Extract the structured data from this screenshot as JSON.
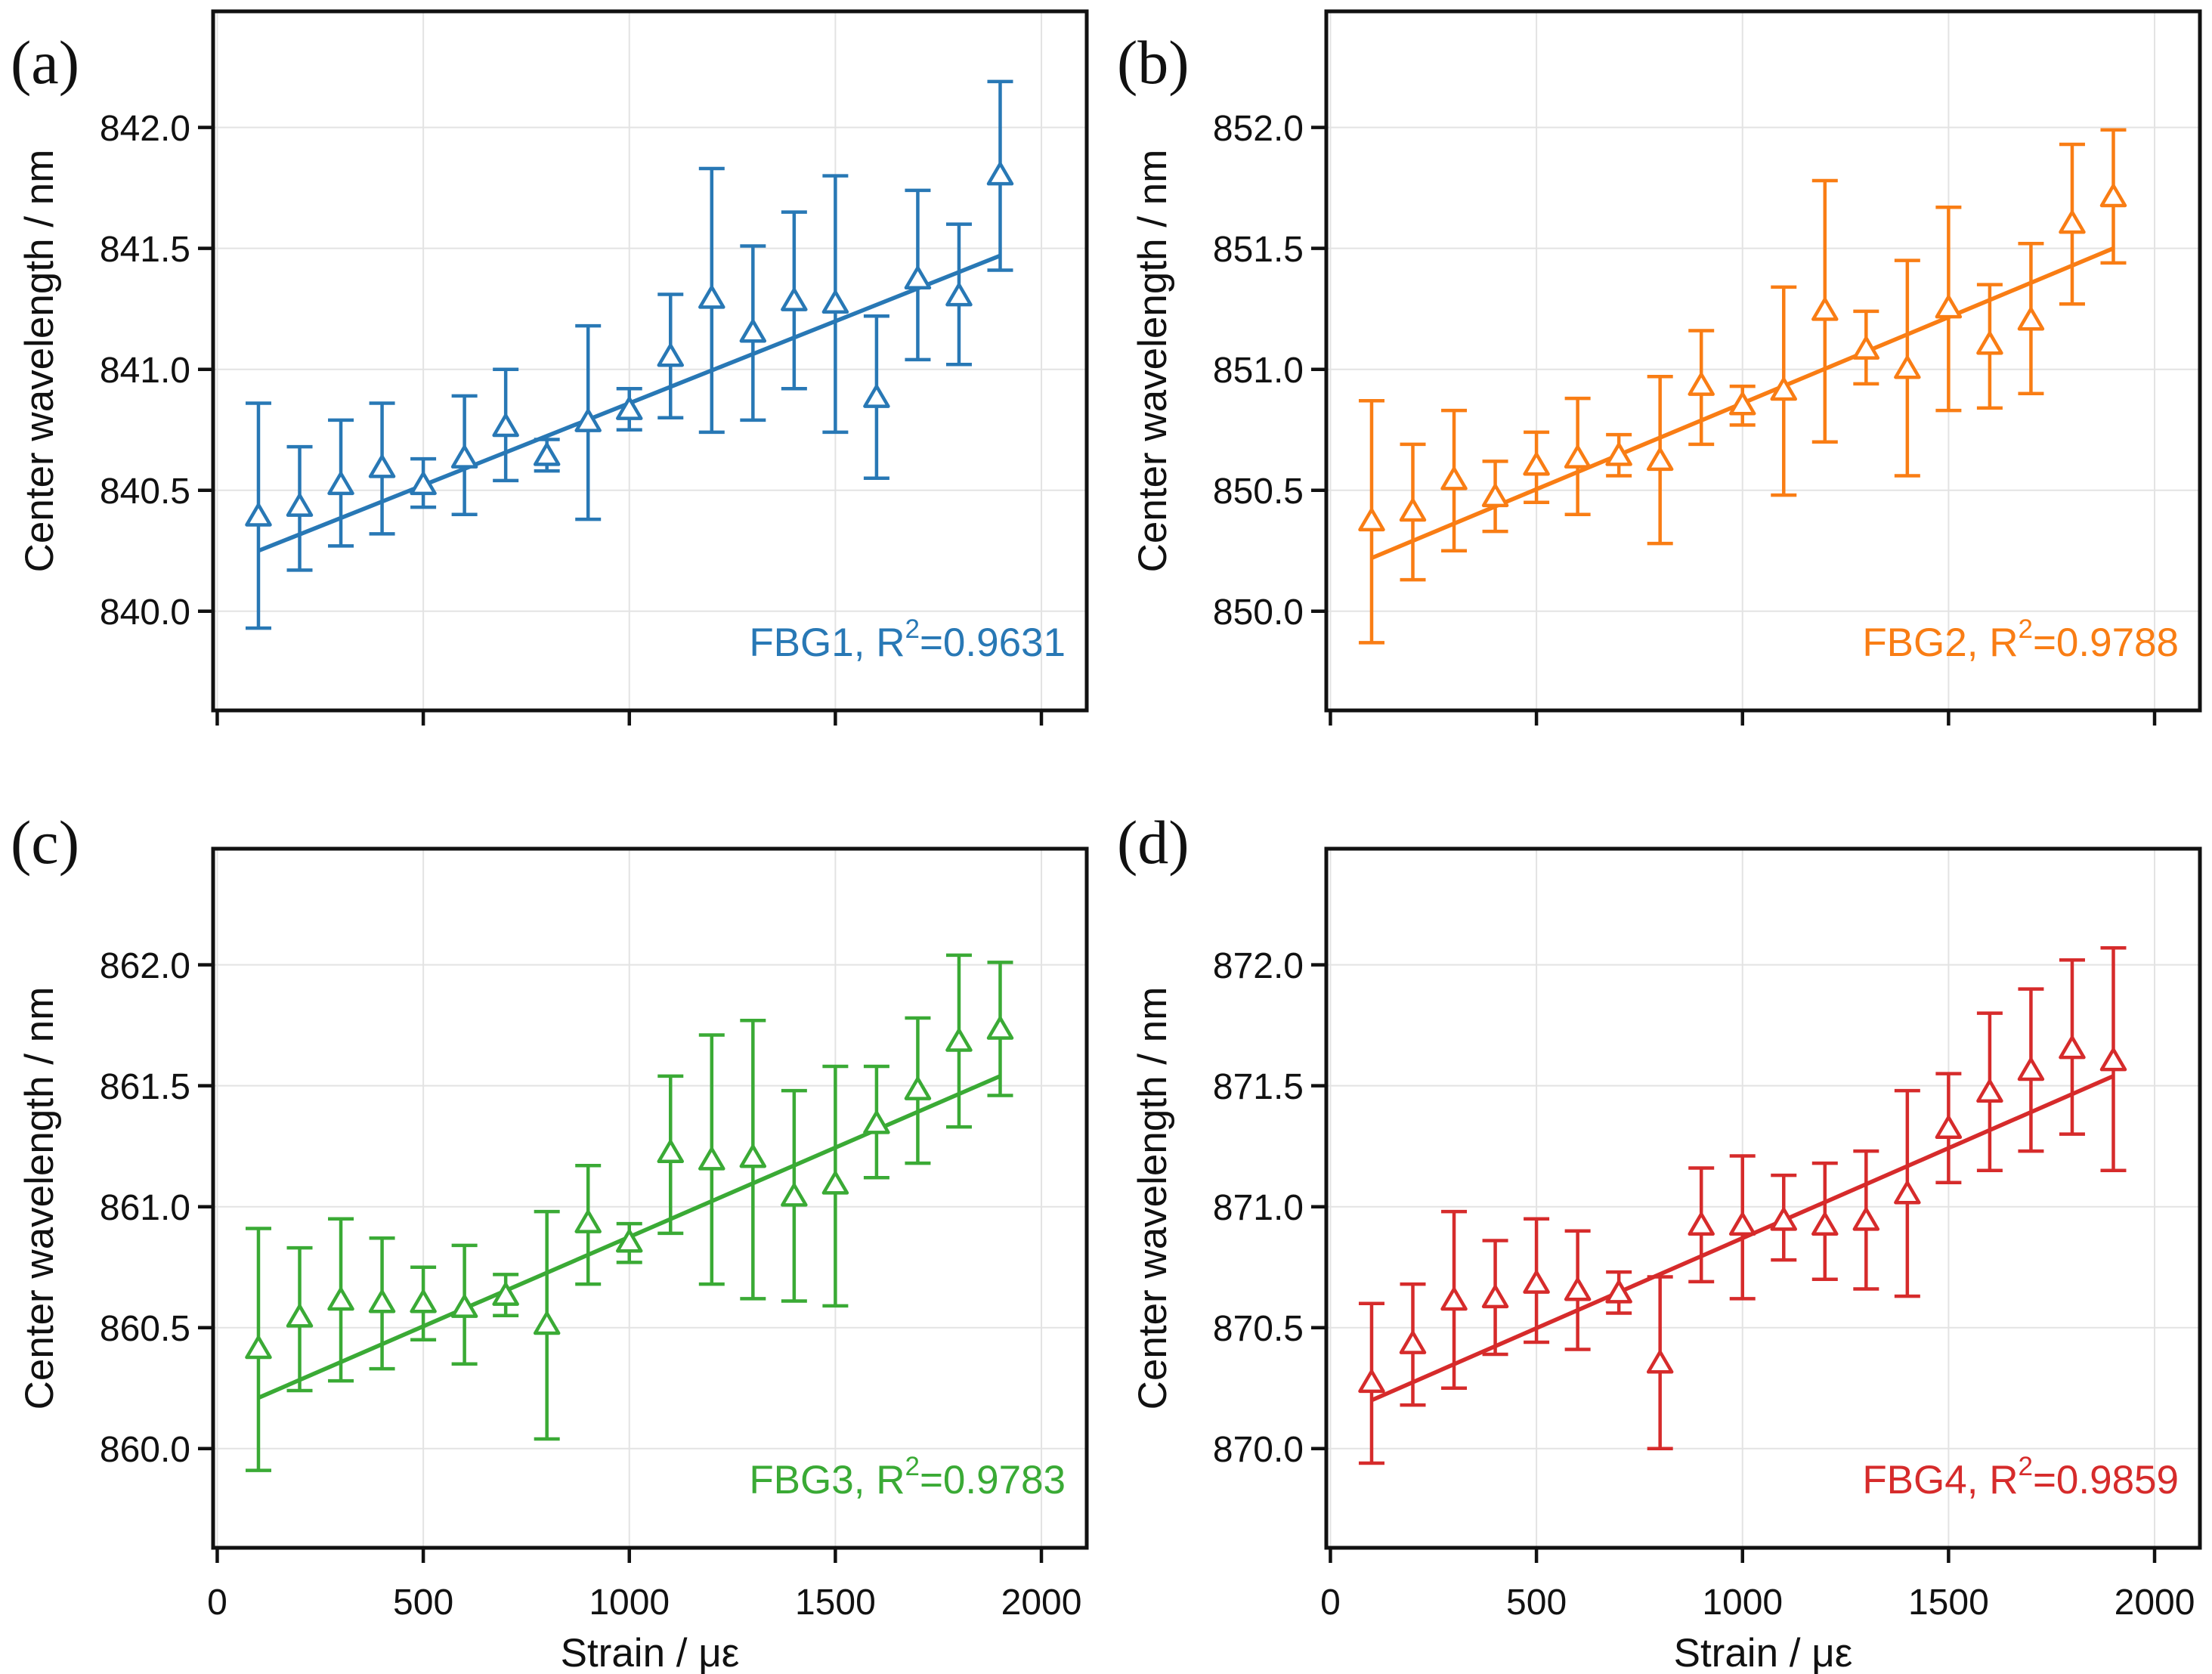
{
  "figure": {
    "xlabel": "Strain / με",
    "ylabel": "Center wavelength / nm",
    "x_tick_labels": [
      "0",
      "500",
      "1000",
      "1500",
      "2000"
    ],
    "grid": true,
    "legend_position": "none",
    "marker": "open-up-triangle-with-error-bars"
  },
  "chart_data": [
    {
      "type": "scatter",
      "letter": "(a)",
      "series_name": "FBG1",
      "color": "#2878b5",
      "annotation": {
        "prefix": "FBG1, R",
        "sup": "2",
        "suffix": "=0.9631"
      },
      "xlabel": "",
      "ylabel": "Center wavelength / nm",
      "x": [
        100,
        200,
        300,
        400,
        500,
        600,
        700,
        800,
        900,
        1000,
        1100,
        1200,
        1300,
        1400,
        1500,
        1600,
        1700,
        1800,
        1900
      ],
      "y": [
        840.39,
        840.43,
        840.52,
        840.59,
        840.52,
        840.63,
        840.76,
        840.64,
        840.78,
        840.83,
        841.05,
        841.29,
        841.15,
        841.28,
        841.27,
        840.88,
        841.37,
        841.3,
        841.8
      ],
      "y_err_low": [
        839.93,
        840.17,
        840.27,
        840.32,
        840.43,
        840.4,
        840.54,
        840.58,
        840.38,
        840.75,
        840.8,
        840.74,
        840.79,
        840.92,
        840.74,
        840.55,
        841.04,
        841.02,
        841.41
      ],
      "y_err_high": [
        840.86,
        840.68,
        840.79,
        840.86,
        840.63,
        840.89,
        841.0,
        840.71,
        841.18,
        840.92,
        841.31,
        841.83,
        841.51,
        841.65,
        841.8,
        841.22,
        841.74,
        841.6,
        842.19
      ],
      "fit_line": {
        "x": [
          100,
          1900
        ],
        "y": [
          840.25,
          841.47
        ]
      },
      "xlim": [
        -10,
        2110
      ],
      "ylim": [
        839.59,
        842.48
      ],
      "xticks": [
        0,
        500,
        1000,
        1500,
        2000
      ],
      "yticks": [
        840.0,
        840.5,
        841.0,
        841.5,
        842.0
      ],
      "ytick_labels": [
        "840.0",
        "840.5",
        "841.0",
        "841.5",
        "842.0"
      ],
      "xtick_labels": [],
      "show_x_tick_labels": false
    },
    {
      "type": "scatter",
      "letter": "(b)",
      "series_name": "FBG2",
      "color": "#f97d14",
      "annotation": {
        "prefix": "FBG2, R",
        "sup": "2",
        "suffix": "=0.9788"
      },
      "xlabel": "",
      "ylabel": "Center wavelength / nm",
      "x": [
        100,
        200,
        300,
        400,
        500,
        600,
        700,
        800,
        900,
        1000,
        1100,
        1200,
        1300,
        1400,
        1500,
        1600,
        1700,
        1800,
        1900
      ],
      "y": [
        850.37,
        850.41,
        850.54,
        850.47,
        850.6,
        850.63,
        850.64,
        850.62,
        850.93,
        850.85,
        850.91,
        851.24,
        851.08,
        851.0,
        851.25,
        851.1,
        851.2,
        851.6,
        851.71
      ],
      "y_err_low": [
        849.87,
        850.13,
        850.25,
        850.33,
        850.45,
        850.4,
        850.56,
        850.28,
        850.69,
        850.77,
        850.48,
        850.7,
        850.94,
        850.56,
        850.83,
        850.84,
        850.9,
        851.27,
        851.44
      ],
      "y_err_high": [
        850.87,
        850.69,
        850.83,
        850.62,
        850.74,
        850.88,
        850.73,
        850.97,
        851.16,
        850.93,
        851.34,
        851.78,
        851.24,
        851.45,
        851.67,
        851.35,
        851.52,
        851.93,
        851.99
      ],
      "fit_line": {
        "x": [
          100,
          1900
        ],
        "y": [
          850.22,
          851.5
        ]
      },
      "xlim": [
        -10,
        2110
      ],
      "ylim": [
        849.59,
        852.48
      ],
      "xticks": [
        0,
        500,
        1000,
        1500,
        2000
      ],
      "yticks": [
        850.0,
        850.5,
        851.0,
        851.5,
        852.0
      ],
      "ytick_labels": [
        "850.0",
        "850.5",
        "851.0",
        "851.5",
        "852.0"
      ],
      "xtick_labels": [],
      "show_x_tick_labels": false
    },
    {
      "type": "scatter",
      "letter": "(c)",
      "series_name": "FBG3",
      "color": "#3aaa35",
      "annotation": {
        "prefix": "FBG3, R",
        "sup": "2",
        "suffix": "=0.9783"
      },
      "xlabel": "Strain / με",
      "ylabel": "Center wavelength / nm",
      "x": [
        100,
        200,
        300,
        400,
        500,
        600,
        700,
        800,
        900,
        1000,
        1100,
        1200,
        1300,
        1400,
        1500,
        1600,
        1700,
        1800,
        1900
      ],
      "y": [
        860.41,
        860.54,
        860.61,
        860.6,
        860.6,
        860.58,
        860.63,
        860.51,
        860.93,
        860.85,
        861.22,
        861.19,
        861.2,
        861.04,
        861.09,
        861.34,
        861.48,
        861.68,
        861.73
      ],
      "y_err_low": [
        859.91,
        860.24,
        860.28,
        860.33,
        860.45,
        860.35,
        860.55,
        860.04,
        860.68,
        860.77,
        860.89,
        860.68,
        860.62,
        860.61,
        860.59,
        861.12,
        861.18,
        861.33,
        861.46
      ],
      "y_err_high": [
        860.91,
        860.83,
        860.95,
        860.87,
        860.75,
        860.84,
        860.72,
        860.98,
        861.17,
        860.93,
        861.54,
        861.71,
        861.77,
        861.48,
        861.58,
        861.58,
        861.78,
        862.04,
        862.01
      ],
      "fit_line": {
        "x": [
          100,
          1900
        ],
        "y": [
          860.21,
          861.54
        ]
      },
      "xlim": [
        -10,
        2110
      ],
      "ylim": [
        859.59,
        862.48
      ],
      "xticks": [
        0,
        500,
        1000,
        1500,
        2000
      ],
      "yticks": [
        860.0,
        860.5,
        861.0,
        861.5,
        862.0
      ],
      "ytick_labels": [
        "860.0",
        "860.5",
        "861.0",
        "861.5",
        "862.0"
      ],
      "xtick_labels": [
        "0",
        "500",
        "1000",
        "1500",
        "2000"
      ],
      "show_x_tick_labels": true
    },
    {
      "type": "scatter",
      "letter": "(d)",
      "series_name": "FBG4",
      "color": "#d62b2b",
      "annotation": {
        "prefix": "FBG4, R",
        "sup": "2",
        "suffix": "=0.9859"
      },
      "xlabel": "Strain / με",
      "ylabel": "Center wavelength / nm",
      "x": [
        100,
        200,
        300,
        400,
        500,
        600,
        700,
        800,
        900,
        1000,
        1100,
        1200,
        1300,
        1400,
        1500,
        1600,
        1700,
        1800,
        1900
      ],
      "y": [
        870.27,
        870.43,
        870.61,
        870.62,
        870.68,
        870.65,
        870.64,
        870.35,
        870.92,
        870.92,
        870.94,
        870.92,
        870.94,
        871.05,
        871.32,
        871.47,
        871.56,
        871.65,
        871.6
      ],
      "y_err_low": [
        869.94,
        870.18,
        870.25,
        870.39,
        870.44,
        870.41,
        870.56,
        870.0,
        870.69,
        870.62,
        870.78,
        870.7,
        870.66,
        870.63,
        871.1,
        871.15,
        871.23,
        871.3,
        871.15
      ],
      "y_err_high": [
        870.6,
        870.68,
        870.98,
        870.86,
        870.95,
        870.9,
        870.73,
        870.71,
        871.16,
        871.21,
        871.13,
        871.18,
        871.23,
        871.48,
        871.55,
        871.8,
        871.9,
        872.02,
        872.07
      ],
      "fit_line": {
        "x": [
          100,
          1900
        ],
        "y": [
          870.2,
          871.54
        ]
      },
      "xlim": [
        -10,
        2110
      ],
      "ylim": [
        869.59,
        872.48
      ],
      "xticks": [
        0,
        500,
        1000,
        1500,
        2000
      ],
      "yticks": [
        870.0,
        870.5,
        871.0,
        871.5,
        872.0
      ],
      "ytick_labels": [
        "870.0",
        "870.5",
        "871.0",
        "871.5",
        "872.0"
      ],
      "xtick_labels": [
        "0",
        "500",
        "1000",
        "1500",
        "2000"
      ],
      "show_x_tick_labels": true
    }
  ],
  "style": {
    "grid_color": "#e3e3e3",
    "frame_color": "#111111",
    "text_color": "#111111"
  }
}
